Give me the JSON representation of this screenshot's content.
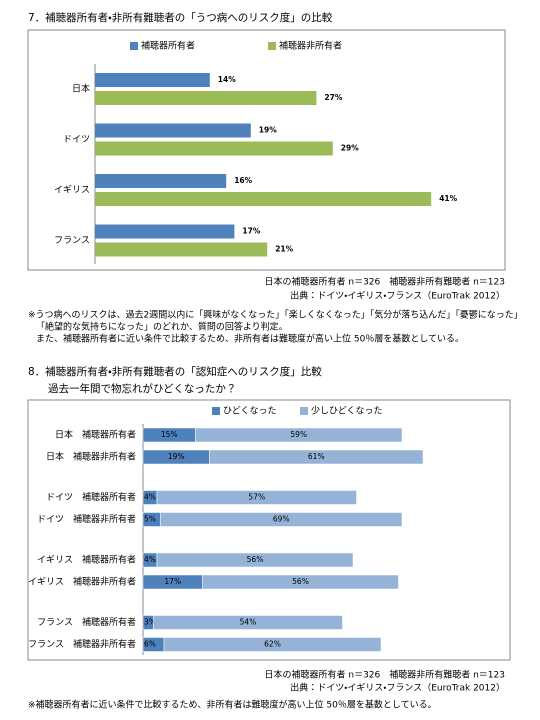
{
  "sections": [
    {
      "heading": "7．補聴器所有者・非所有難聴者の「うつ病へのリスク度」の比較",
      "chart_data": {
        "type": "bar",
        "orientation": "horizontal",
        "categories": [
          "日本",
          "ドイツ",
          "イギリス",
          "フランス"
        ],
        "series": [
          {
            "name": "補聴器所有者",
            "color": "#4f81bd",
            "values": [
              14,
              19,
              16,
              17
            ],
            "value_labels": [
              "14%",
              "19%",
              "16%",
              "17%"
            ]
          },
          {
            "name": "補聴器非所有者",
            "color": "#9bbb59",
            "values": [
              27,
              29,
              41,
              21
            ],
            "value_labels": [
              "27%",
              "29%",
              "41%",
              "21%"
            ]
          }
        ],
        "xlim": [
          0,
          45
        ],
        "legend": "top"
      },
      "notes": [
        "日本の補聴器所有者 n＝326　補聴器非所有難聴者 n＝123",
        "出典：ドイツ・イギリス・フランス（EuroTrak 2012）"
      ],
      "footnotes": [
        "※うつ病へのリスクは、過去2週間以内に「興味がなくなった」「楽しくなくなった」「気分が落ち込んだ」「憂鬱になった」",
        "「絶望的な気持ちになった」のどれか、質問の回答より判定。",
        "また、補聴器所有者に近い条件で比較するため、非所有者は難聴度が高い上位 50％層を基数としている。"
      ]
    },
    {
      "heading": "8．補聴器所有者・非所有難聴者の「認知症へのリスク度」比較",
      "chart_data": {
        "type": "stacked_bar",
        "orientation": "horizontal",
        "subtitle": "過去一年間で物忘れがひどくなったか？",
        "categories": [
          "日本　補聴器所有者",
          "日本　補聴器非所有者",
          "ドイツ　補聴器所有者",
          "ドイツ　補聴器非所有者",
          "イギリス　補聴器所有者",
          "イギリス　補聴器非所有者",
          "フランス　補聴器所有者",
          "フランス　補聴器非所有者"
        ],
        "series": [
          {
            "name": "ひどくなった",
            "color": "#4f81bd",
            "values": [
              15,
              19,
              4,
              5,
              4,
              17,
              3,
              6
            ],
            "value_labels": [
              "15%",
              "19%",
              "4%",
              "5%",
              "4%",
              "17%",
              "3%",
              "6%"
            ]
          },
          {
            "name": "少しひどくなった",
            "color": "#95b3d7",
            "values": [
              59,
              61,
              57,
              69,
              56,
              56,
              54,
              62
            ],
            "value_labels": [
              "59%",
              "61%",
              "57%",
              "69%",
              "56%",
              "56%",
              "54%",
              "62%"
            ]
          }
        ],
        "xlim": [
          0,
          100
        ],
        "legend": "top"
      },
      "notes": [
        "日本の補聴器所有者 n＝326　補聴器非所有難聴者 n＝123",
        "出典：ドイツ・イギリス・フランス（EuroTrak 2012）"
      ],
      "footnotes": [
        "※補聴器所有者に近い条件で比較するため、非所有者は難聴度が高い上位 50％層を基数としている。"
      ]
    }
  ]
}
